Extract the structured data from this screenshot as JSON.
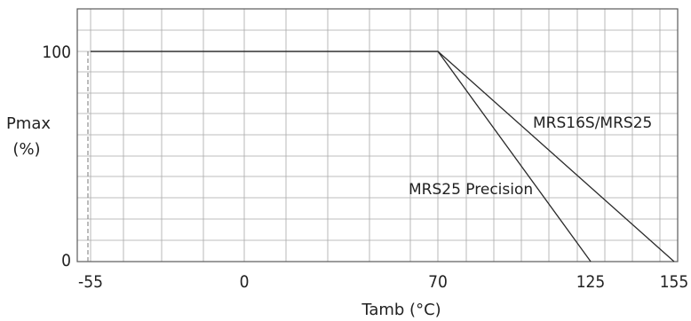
{
  "chart_data": {
    "type": "line",
    "xlabel": "Tamb (°C)",
    "ylabel_line1": "Pmax",
    "ylabel_line2": "(%)",
    "xticks": [
      -55,
      0,
      70,
      125,
      155
    ],
    "yticks": [
      0,
      100
    ],
    "grid": true,
    "series": [
      {
        "name": "MRS16S/MRS25",
        "x": [
          -55,
          70,
          155
        ],
        "y": [
          100,
          100,
          0
        ]
      },
      {
        "name": "MRS25 Precision",
        "x": [
          -55,
          70,
          125
        ],
        "y": [
          100,
          100,
          0
        ]
      }
    ],
    "guide_x": -55
  },
  "labels": {
    "xlabel": "Tamb (°C)",
    "ylabel_line1": "Pmax",
    "ylabel_line2": "(%)",
    "series_1": "MRS16S/MRS25",
    "series_2": "MRS25 Precision",
    "x_ticks": [
      "-55",
      "0",
      "70",
      "125",
      "155"
    ],
    "y_ticks": [
      "0",
      "100"
    ]
  }
}
